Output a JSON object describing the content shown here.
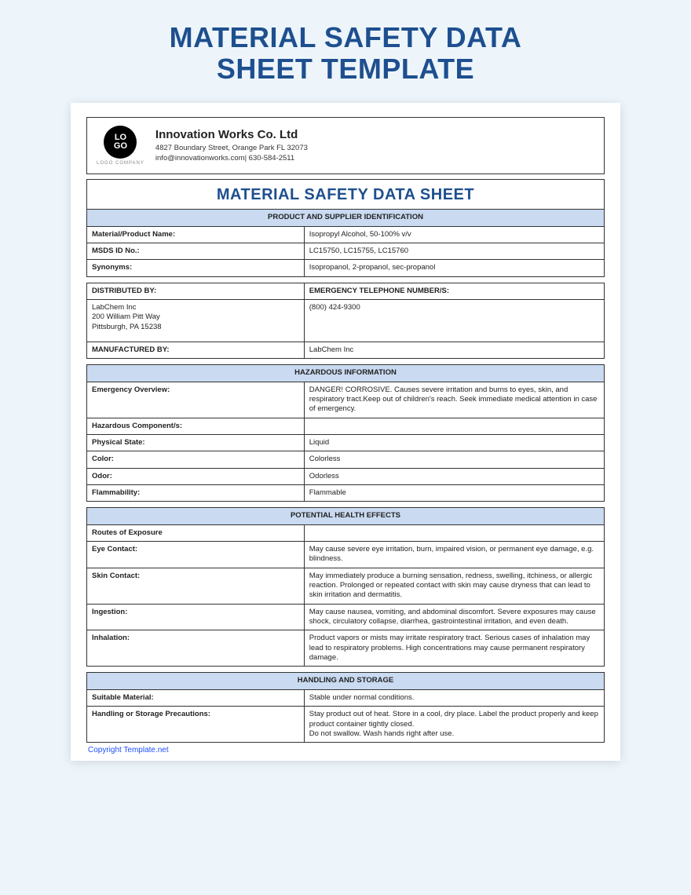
{
  "colors": {
    "page_bg": "#edf5fb",
    "sheet_bg": "#ffffff",
    "accent_title": "#1e4f8f",
    "section_head_bg": "#c9daf1",
    "border": "#333333",
    "link": "#1e4fff"
  },
  "page_title_line1": "MATERIAL SAFETY DATA",
  "page_title_line2": "SHEET TEMPLATE",
  "logo": {
    "text": "LO\nGO",
    "subtext": "LOGO COMPANY"
  },
  "company": {
    "name": "Innovation Works Co. Ltd",
    "address": "4827 Boundary Street, Orange Park FL 32073",
    "contact": "info@innovationworks.com| 630-584-2511"
  },
  "doc_title": "MATERIAL SAFETY DATA SHEET",
  "sections": {
    "product_id": {
      "heading": "PRODUCT AND SUPPLIER IDENTIFICATION",
      "rows": [
        {
          "label": "Material/Product Name:",
          "value": "Isopropyl Alcohol, 50-100% v/v"
        },
        {
          "label": "MSDS ID No.:",
          "value": "LC15750, LC15755, LC15760"
        },
        {
          "label": "Synonyms:",
          "value": "Isopropanol, 2-propanol, sec-propanol"
        }
      ],
      "dist_head_left": "DISTRIBUTED BY:",
      "dist_head_right": "EMERGENCY TELEPHONE NUMBER/S:",
      "dist_left": "LabChem Inc\n200 William Pitt Way\nPittsburgh, PA 15238",
      "dist_right": "(800) 424-9300",
      "manu_label": "MANUFACTURED BY:",
      "manu_value": "LabChem Inc"
    },
    "hazard": {
      "heading": "HAZARDOUS INFORMATION",
      "rows": [
        {
          "label": "Emergency Overview:",
          "value": "DANGER! CORROSIVE. Causes severe irritation and burns to eyes, skin, and respiratory tract.Keep out of children's reach. Seek immediate medical attention in case of emergency."
        },
        {
          "label": "Hazardous Component/s:",
          "value": ""
        },
        {
          "label": "Physical State:",
          "value": "Liquid"
        },
        {
          "label": "Color:",
          "value": "Colorless"
        },
        {
          "label": "Odor:",
          "value": "Odorless"
        },
        {
          "label": "Flammability:",
          "value": "Flammable"
        }
      ]
    },
    "health": {
      "heading": "POTENTIAL HEALTH EFFECTS",
      "rows": [
        {
          "label": "Routes of Exposure",
          "value": ""
        },
        {
          "label": "Eye Contact:",
          "value": "May cause severe eye irritation, burn, impaired vision, or permanent eye damage, e.g. blindness."
        },
        {
          "label": "Skin Contact:",
          "value": "May immediately produce a burning sensation, redness, swelling, itchiness, or allergic reaction. Prolonged or repeated contact with skin may cause dryness that can lead to skin irritation and dermatitis."
        },
        {
          "label": "Ingestion:",
          "value": "May cause nausea, vomiting, and abdominal discomfort. Severe exposures may cause shock, circulatory collapse, diarrhea, gastrointestinal irritation, and even death."
        },
        {
          "label": "Inhalation:",
          "value": "Product vapors or mists may irritate respiratory tract. Serious cases of inhalation may lead to respiratory problems. High concentrations may cause permanent respiratory damage."
        }
      ]
    },
    "handling": {
      "heading": "HANDLING AND STORAGE",
      "rows": [
        {
          "label": "Suitable Material:",
          "value": "Stable under normal conditions."
        },
        {
          "label": "Handling or Storage Precautions:",
          "value": "Stay product out of heat. Store in a cool, dry place. Label the product properly and keep product container tightly closed.\nDo not swallow. Wash hands right after use."
        }
      ]
    }
  },
  "copyright": "Copyright Template.net"
}
